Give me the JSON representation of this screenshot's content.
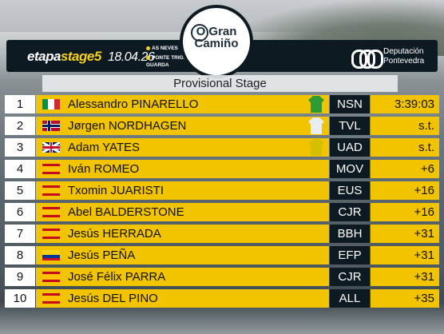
{
  "header": {
    "stage_prefix": "etapa",
    "stage_label": "stage5",
    "date": "18.04.26",
    "route_start": "AS NEVES",
    "route_end": "PONTE TRIGA A GUARDA",
    "race_logo_text": "O Gran Camiño",
    "sponsor_text_line1": "Deputación",
    "sponsor_text_line2": "Pontevedra",
    "accent_color": "#f2c400"
  },
  "subtitle": "Provisional Stage",
  "rows": [
    {
      "pos": "1",
      "flag": "italy",
      "name": "Alessandro PINARELLO",
      "jersey": "green",
      "team": "NSN",
      "time": "3:39:03"
    },
    {
      "pos": "2",
      "flag": "norway",
      "name": "Jørgen NORDHAGEN",
      "jersey": "white",
      "team": "TVL",
      "time": "s.t."
    },
    {
      "pos": "3",
      "flag": "uk",
      "name": "Adam YATES",
      "jersey": "yellow",
      "team": "UAD",
      "time": "s.t."
    },
    {
      "pos": "4",
      "flag": "spain",
      "name": "Iván ROMEO",
      "jersey": "",
      "team": "MOV",
      "time": "+6"
    },
    {
      "pos": "5",
      "flag": "spain",
      "name": "Txomin JUARISTI",
      "jersey": "",
      "team": "EUS",
      "time": "+16"
    },
    {
      "pos": "6",
      "flag": "spain",
      "name": "Abel BALDERSTONE",
      "jersey": "",
      "team": "CJR",
      "time": "+16"
    },
    {
      "pos": "7",
      "flag": "spain",
      "name": "Jesús HERRADA",
      "jersey": "",
      "team": "BBH",
      "time": "+31"
    },
    {
      "pos": "8",
      "flag": "colombia",
      "name": "Jesús PEÑA",
      "jersey": "",
      "team": "EFP",
      "time": "+31"
    },
    {
      "pos": "9",
      "flag": "spain",
      "name": "José Félix PARRA",
      "jersey": "",
      "team": "CJR",
      "time": "+31"
    },
    {
      "pos": "10",
      "flag": "spain",
      "name": "Jesús DEL PINO",
      "jersey": "",
      "team": "ALL",
      "time": "+35"
    }
  ]
}
